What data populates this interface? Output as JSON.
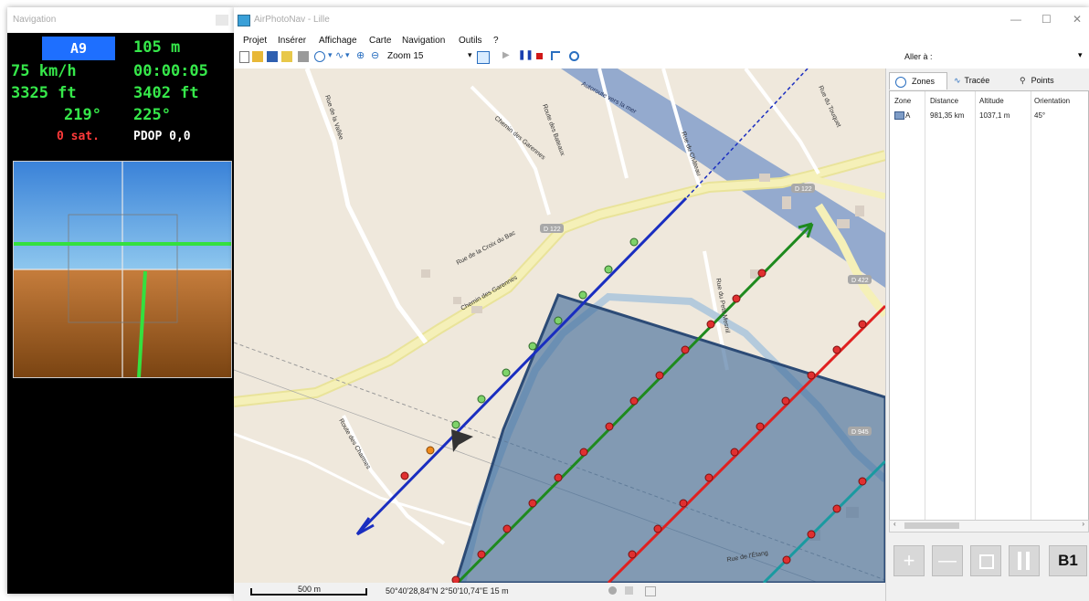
{
  "nav": {
    "title": "Navigation",
    "waypoint": "A9",
    "distance": "105 m",
    "speed": "75 km/h",
    "time": "00:00:05",
    "altitude": "3325 ft",
    "target_altitude": "3402 ft",
    "heading": "219°",
    "target_heading": "225°",
    "satellites": "0 sat.",
    "pdop": "PDOP 0,0"
  },
  "window": {
    "title": "AirPhotoNav - Lille",
    "minimize": "—",
    "maximize": "☐",
    "close": "✕"
  },
  "menu": [
    "Projet",
    "Insérer",
    "Affichage",
    "Carte",
    "Navigation",
    "Outils",
    "?"
  ],
  "toolbar": {
    "zoom_label": "Zoom 15",
    "goto_label": "Aller à :",
    "goto_value": ""
  },
  "map": {
    "street_labels": [
      "Autoroute vers la mer",
      "Rue du Touquet",
      "Rue de la Croix du Bac",
      "Chemin des Garennes",
      "Route des Bateaux",
      "Rue du Château",
      "Rue du Petit Mesnil",
      "Rue de la Vallée",
      "Route des Charmes",
      "Chemin des Garennes",
      "Rue de l'Étang"
    ],
    "road_badges": [
      "D 122",
      "D 122",
      "D 422",
      "D 945"
    ]
  },
  "status": {
    "scale": "500 m",
    "coords": "50°40'28,84\"N 2°50'10,74\"E  15 m"
  },
  "side": {
    "tabs": [
      "Zones",
      "Tracée",
      "Points"
    ],
    "columns": [
      "Zone",
      "Distance",
      "Altitude",
      "Orientation"
    ],
    "rows": [
      {
        "zone": "A",
        "distance": "981,35 km",
        "altitude": "1037,1 m",
        "orientation": "45°"
      }
    ],
    "buttons": {
      "add": "+",
      "remove": "—",
      "frame": "",
      "pause": "",
      "b1": "B1"
    }
  },
  "colors": {
    "flight_line_active": "#1a2ec0",
    "flight_line_2": "#1e8a1e",
    "flight_line_3": "#e02020",
    "flight_line_4": "#1a9aa0",
    "zone_fill": "#3f6a9a",
    "badge_blue": "#1e6fff",
    "readout_green": "#36e84a"
  }
}
